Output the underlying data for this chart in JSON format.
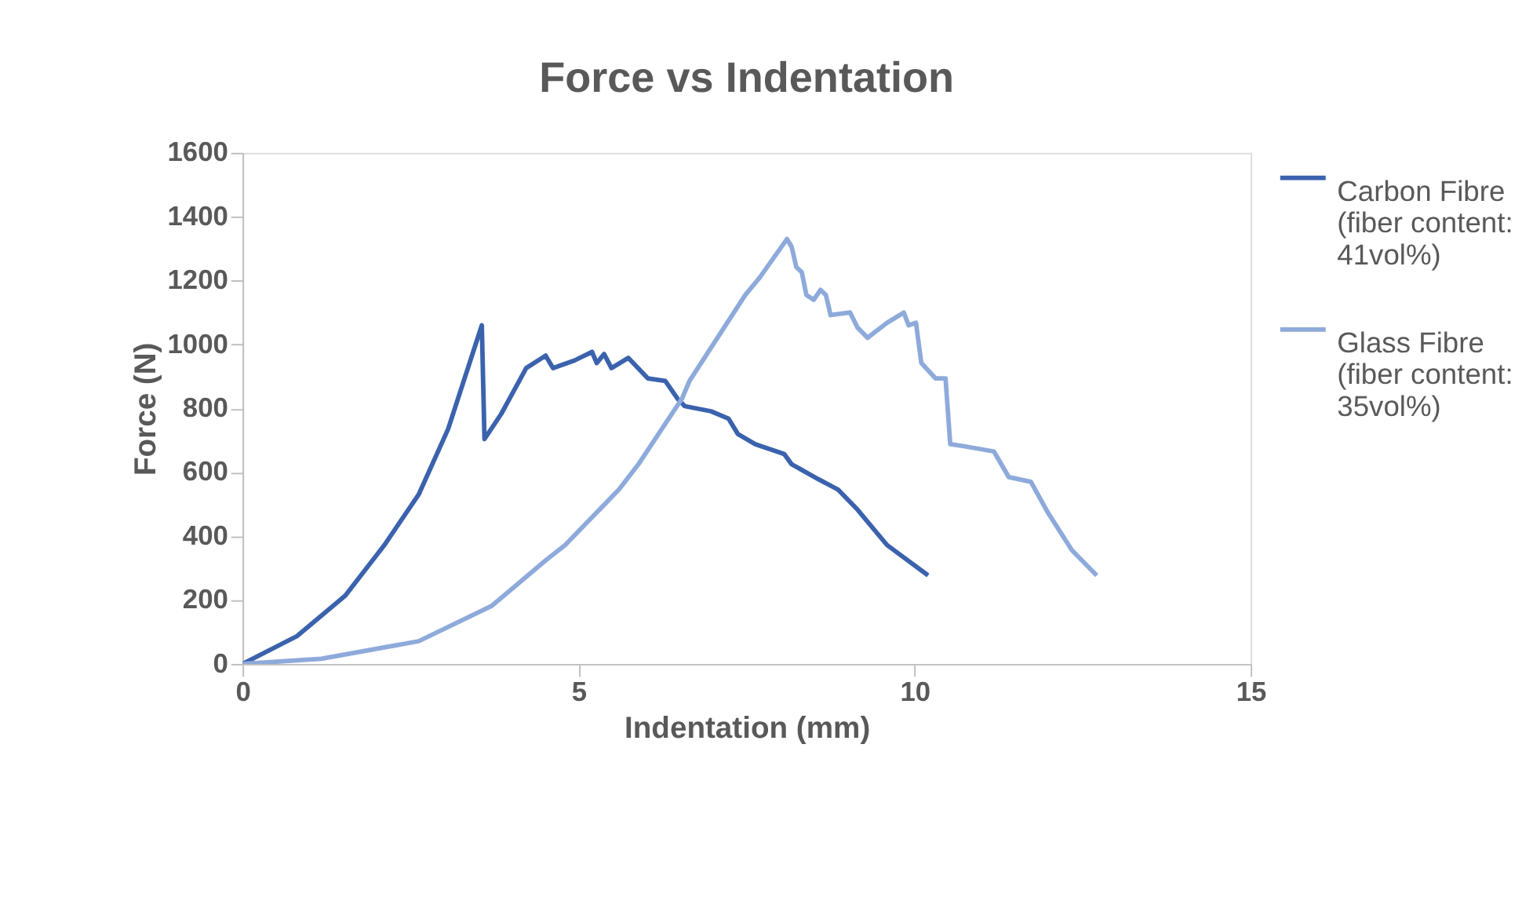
{
  "chart_data": {
    "type": "line",
    "title": "Force vs Indentation",
    "xlabel": "Indentation (mm)",
    "ylabel": "Force (N)",
    "xlim": [
      0,
      15
    ],
    "xticks": [
      0,
      5,
      10,
      15
    ],
    "ylim": [
      0,
      1600
    ],
    "yticks": [
      0,
      200,
      400,
      600,
      800,
      1000,
      1200,
      1400,
      1600
    ],
    "grid": false,
    "legend": "right",
    "marker": "none",
    "line_style": "solid",
    "series": [
      {
        "name": "Carbon Fibre (fiber content: 41vol%)",
        "color": "#3b62ad",
        "x": [
          0,
          0.81,
          1.53,
          2.11,
          2.62,
          3.06,
          3.56,
          3.6,
          3.85,
          4.22,
          4.51,
          4.62,
          4.94,
          5.2,
          5.27,
          5.38,
          5.49,
          5.74,
          6.03,
          6.29,
          6.47,
          6.58,
          6.97,
          7.23,
          7.37,
          7.63,
          8.06,
          8.17,
          8.57,
          8.86,
          9.15,
          9.59,
          10.2
        ],
        "values": [
          0,
          87,
          214,
          372,
          530,
          736,
          1060,
          704,
          783,
          926,
          965,
          926,
          950,
          977,
          942,
          970,
          926,
          958,
          894,
          886,
          831,
          807,
          791,
          768,
          720,
          688,
          657,
          625,
          578,
          546,
          483,
          372,
          277
        ]
      },
      {
        "name": "Glass Fibre (fiber content: 35vol%)",
        "color": "#8eaadb",
        "x": [
          0,
          1.17,
          2.62,
          3.71,
          4.51,
          4.8,
          5.6,
          5.89,
          6.54,
          6.65,
          7.48,
          7.7,
          8.1,
          8.17,
          8.24,
          8.32,
          8.39,
          8.5,
          8.6,
          8.68,
          8.75,
          9.04,
          9.15,
          9.3,
          9.59,
          9.84,
          9.91,
          10.02,
          10.1,
          10.31,
          10.46,
          10.53,
          10.75,
          11.18,
          11.4,
          11.73,
          11.98,
          12.34,
          12.71
        ],
        "values": [
          0,
          16,
          71,
          182,
          324,
          372,
          546,
          625,
          831,
          886,
          1155,
          1211,
          1330,
          1306,
          1242,
          1227,
          1155,
          1140,
          1171,
          1155,
          1092,
          1100,
          1053,
          1021,
          1068,
          1100,
          1060,
          1068,
          942,
          894,
          894,
          688,
          681,
          665,
          585,
          570,
          475,
          356,
          277
        ]
      }
    ]
  }
}
